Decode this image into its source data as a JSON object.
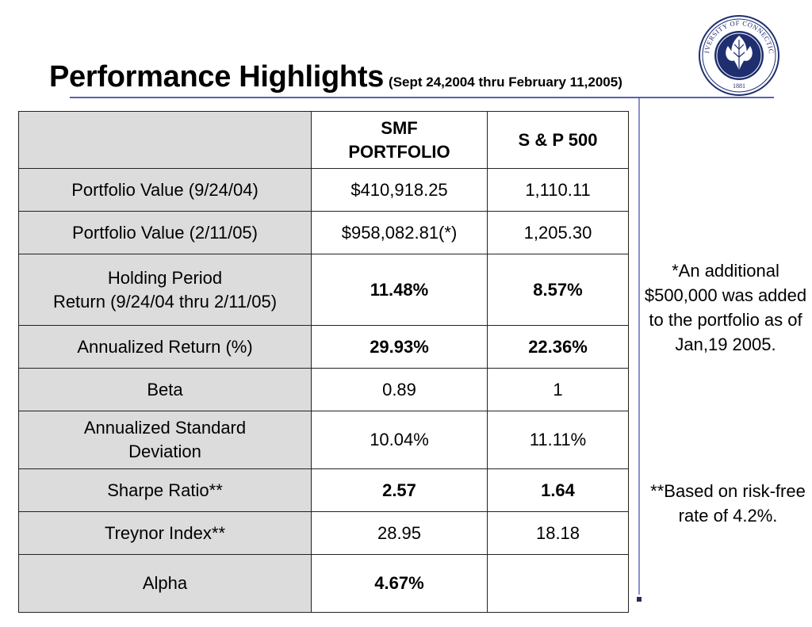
{
  "title": {
    "main": "Performance Highlights",
    "sub": "(Sept 24,2004 thru February 11,2005)"
  },
  "seal": {
    "text_top": "UNIVERSITY OF CONNECTICUT",
    "year": "1881"
  },
  "table": {
    "headers": [
      "",
      "SMF\nPORTFOLIO",
      "S & P 500"
    ],
    "rows": [
      {
        "label": "Portfolio Value (9/24/04)",
        "smf": "$410,918.25",
        "sp": "1,110.11"
      },
      {
        "label": "Portfolio Value (2/11/05)",
        "smf": "$958,082.81(*)",
        "sp": "1,205.30"
      },
      {
        "label": "Holding Period\nReturn (9/24/04 thru 2/11/05)",
        "smf": "11.48%",
        "sp": "8.57%"
      },
      {
        "label": "Annualized Return (%)",
        "smf": "29.93%",
        "sp": "22.36%"
      },
      {
        "label": "Beta",
        "smf": "0.89",
        "sp": "1"
      },
      {
        "label": "Annualized Standard\nDeviation",
        "smf": "10.04%",
        "sp": "11.11%"
      },
      {
        "label": "Sharpe Ratio**",
        "smf": "2.57",
        "sp": "1.64"
      },
      {
        "label": "Treynor Index**",
        "smf": "28.95",
        "sp": "18.18"
      },
      {
        "label": "Alpha",
        "smf": "4.67%",
        "sp": ""
      }
    ]
  },
  "notes": {
    "additional": "*An additional $500,000 was added to the portfolio as of Jan,19 2005.",
    "riskfree": "**Based on risk-free rate of 4.2%."
  },
  "colors": {
    "label_bg": "#dcdcdc",
    "rule": "#5a5fb8",
    "seal_blue": "#1f2e6e"
  }
}
